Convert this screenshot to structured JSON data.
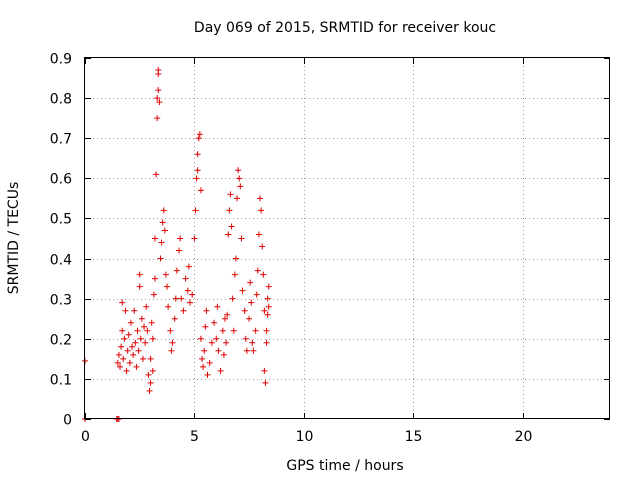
{
  "chart_data": {
    "type": "scatter",
    "title": "Day 069 of 2015, SRMTID for receiver kouc",
    "xlabel": "GPS time / hours",
    "ylabel": "SRMTID / TECUs",
    "xlim": [
      0,
      24
    ],
    "ylim": [
      0,
      0.9
    ],
    "xticks": [
      0,
      5,
      10,
      15,
      20
    ],
    "yticks": [
      0,
      0.1,
      0.2,
      0.3,
      0.4,
      0.5,
      0.6,
      0.7,
      0.8,
      0.9
    ],
    "xtick_labels": [
      "0",
      "5",
      "10",
      "15",
      "20"
    ],
    "ytick_labels": [
      "0",
      "0.1",
      "0.2",
      "0.3",
      "0.4",
      "0.5",
      "0.6",
      "0.7",
      "0.8",
      "0.9"
    ],
    "grid": true,
    "marker": "plus",
    "color": "#e00000",
    "series": [
      {
        "name": "SRMTID",
        "points": [
          [
            0.0,
            0.0
          ],
          [
            0.0,
            0.145
          ],
          [
            1.45,
            0.0
          ],
          [
            1.5,
            0.0
          ],
          [
            1.55,
            0.0
          ],
          [
            1.5,
            0.14
          ],
          [
            1.55,
            0.16
          ],
          [
            1.6,
            0.13
          ],
          [
            1.65,
            0.18
          ],
          [
            1.7,
            0.22
          ],
          [
            1.7,
            0.29
          ],
          [
            1.75,
            0.15
          ],
          [
            1.8,
            0.2
          ],
          [
            1.85,
            0.27
          ],
          [
            1.9,
            0.12
          ],
          [
            1.95,
            0.17
          ],
          [
            2.0,
            0.21
          ],
          [
            2.05,
            0.14
          ],
          [
            2.1,
            0.24
          ],
          [
            2.15,
            0.18
          ],
          [
            2.2,
            0.16
          ],
          [
            2.25,
            0.27
          ],
          [
            2.3,
            0.19
          ],
          [
            2.35,
            0.13
          ],
          [
            2.4,
            0.22
          ],
          [
            2.45,
            0.17
          ],
          [
            2.5,
            0.33
          ],
          [
            2.5,
            0.36
          ],
          [
            2.55,
            0.2
          ],
          [
            2.6,
            0.25
          ],
          [
            2.65,
            0.15
          ],
          [
            2.7,
            0.23
          ],
          [
            2.75,
            0.19
          ],
          [
            2.8,
            0.28
          ],
          [
            2.85,
            0.22
          ],
          [
            2.9,
            0.11
          ],
          [
            2.95,
            0.07
          ],
          [
            3.0,
            0.09
          ],
          [
            3.0,
            0.15
          ],
          [
            3.05,
            0.24
          ],
          [
            3.1,
            0.12
          ],
          [
            3.1,
            0.2
          ],
          [
            3.15,
            0.31
          ],
          [
            3.2,
            0.35
          ],
          [
            3.2,
            0.45
          ],
          [
            3.25,
            0.61
          ],
          [
            3.3,
            0.75
          ],
          [
            3.3,
            0.8
          ],
          [
            3.35,
            0.82
          ],
          [
            3.35,
            0.87
          ],
          [
            3.35,
            0.86
          ],
          [
            3.4,
            0.79
          ],
          [
            3.45,
            0.4
          ],
          [
            3.5,
            0.44
          ],
          [
            3.55,
            0.49
          ],
          [
            3.6,
            0.52
          ],
          [
            3.65,
            0.47
          ],
          [
            3.7,
            0.36
          ],
          [
            3.75,
            0.33
          ],
          [
            3.8,
            0.28
          ],
          [
            3.9,
            0.22
          ],
          [
            3.95,
            0.17
          ],
          [
            4.0,
            0.19
          ],
          [
            4.1,
            0.25
          ],
          [
            4.15,
            0.3
          ],
          [
            4.2,
            0.37
          ],
          [
            4.3,
            0.42
          ],
          [
            4.35,
            0.45
          ],
          [
            4.4,
            0.3
          ],
          [
            4.5,
            0.27
          ],
          [
            4.6,
            0.35
          ],
          [
            4.7,
            0.32
          ],
          [
            4.75,
            0.38
          ],
          [
            4.8,
            0.29
          ],
          [
            4.9,
            0.31
          ],
          [
            5.0,
            0.45
          ],
          [
            5.05,
            0.52
          ],
          [
            5.1,
            0.6
          ],
          [
            5.15,
            0.62
          ],
          [
            5.15,
            0.66
          ],
          [
            5.2,
            0.7
          ],
          [
            5.25,
            0.71
          ],
          [
            5.3,
            0.57
          ],
          [
            5.3,
            0.2
          ],
          [
            5.35,
            0.15
          ],
          [
            5.4,
            0.13
          ],
          [
            5.45,
            0.17
          ],
          [
            5.5,
            0.23
          ],
          [
            5.55,
            0.27
          ],
          [
            5.6,
            0.11
          ],
          [
            5.7,
            0.14
          ],
          [
            5.8,
            0.19
          ],
          [
            5.9,
            0.24
          ],
          [
            6.0,
            0.2
          ],
          [
            6.05,
            0.28
          ],
          [
            6.1,
            0.17
          ],
          [
            6.2,
            0.12
          ],
          [
            6.3,
            0.22
          ],
          [
            6.35,
            0.16
          ],
          [
            6.4,
            0.25
          ],
          [
            6.45,
            0.19
          ],
          [
            6.5,
            0.26
          ],
          [
            6.55,
            0.46
          ],
          [
            6.6,
            0.52
          ],
          [
            6.65,
            0.56
          ],
          [
            6.7,
            0.48
          ],
          [
            6.75,
            0.3
          ],
          [
            6.8,
            0.22
          ],
          [
            6.85,
            0.36
          ],
          [
            6.9,
            0.4
          ],
          [
            6.95,
            0.55
          ],
          [
            7.0,
            0.62
          ],
          [
            7.05,
            0.6
          ],
          [
            7.1,
            0.58
          ],
          [
            7.15,
            0.45
          ],
          [
            7.2,
            0.32
          ],
          [
            7.3,
            0.27
          ],
          [
            7.35,
            0.2
          ],
          [
            7.4,
            0.17
          ],
          [
            7.5,
            0.25
          ],
          [
            7.55,
            0.34
          ],
          [
            7.6,
            0.29
          ],
          [
            7.65,
            0.19
          ],
          [
            7.7,
            0.17
          ],
          [
            7.8,
            0.22
          ],
          [
            7.85,
            0.31
          ],
          [
            7.9,
            0.37
          ],
          [
            7.95,
            0.46
          ],
          [
            8.0,
            0.55
          ],
          [
            8.05,
            0.52
          ],
          [
            8.1,
            0.43
          ],
          [
            8.15,
            0.36
          ],
          [
            8.2,
            0.27
          ],
          [
            8.2,
            0.12
          ],
          [
            8.25,
            0.09
          ],
          [
            8.3,
            0.19
          ],
          [
            8.3,
            0.22
          ],
          [
            8.35,
            0.26
          ],
          [
            8.35,
            0.3
          ],
          [
            8.4,
            0.28
          ],
          [
            8.4,
            0.33
          ]
        ]
      }
    ]
  }
}
